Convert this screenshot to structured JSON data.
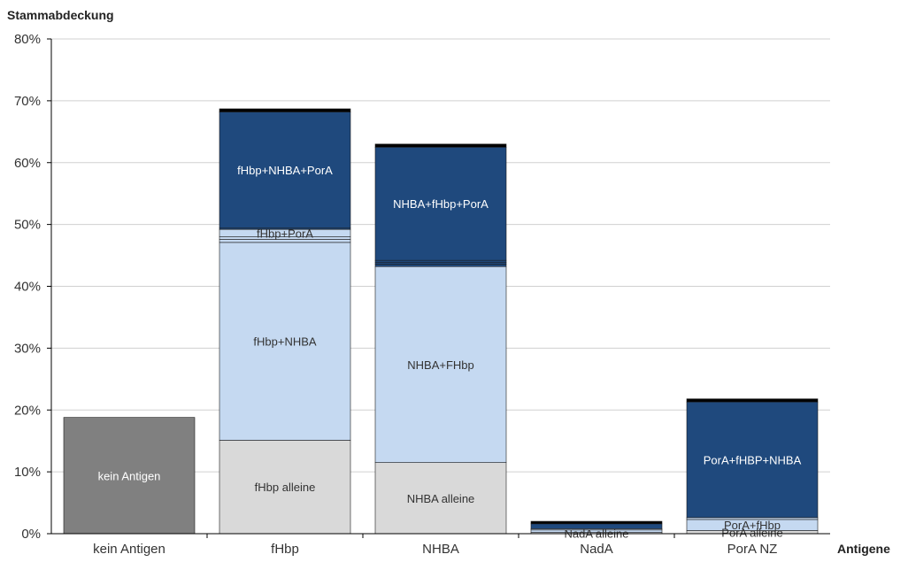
{
  "chart_data": {
    "type": "bar",
    "stacked": true,
    "ylabel": "Stammabdeckung",
    "xlabel": "Antigene",
    "ylim": [
      0,
      0.8
    ],
    "yticks": [
      "0%",
      "10%",
      "20%",
      "30%",
      "40%",
      "50%",
      "60%",
      "70%",
      "80%"
    ],
    "grid": true,
    "categories": [
      "kein Antigen",
      "fHbp",
      "NHBA",
      "NadA",
      "PorA NZ"
    ],
    "colors": {
      "gray_dark": "#808080",
      "gray_light": "#d9d9d9",
      "blue_light": "#c5d9f1",
      "blue_dark": "#1f497d",
      "black": "#000000",
      "axis": "#000000",
      "grid": "#d0d0d0",
      "text": "#333333"
    },
    "bars": [
      {
        "category": "kein Antigen",
        "segments": [
          {
            "value": 0.188,
            "color": "gray_dark",
            "label": "kein Antigen"
          }
        ]
      },
      {
        "category": "fHbp",
        "segments": [
          {
            "value": 0.151,
            "color": "gray_light",
            "label": "fHbp alleine"
          },
          {
            "value": 0.32,
            "color": "blue_light",
            "label": "fHbp+NHBA"
          },
          {
            "value": 0.005,
            "color": "blue_light",
            "label": ""
          },
          {
            "value": 0.004,
            "color": "blue_light",
            "label": ""
          },
          {
            "value": 0.012,
            "color": "blue_light",
            "label": "fHbp+PorA"
          },
          {
            "value": 0.002,
            "color": "blue_dark",
            "label": ""
          },
          {
            "value": 0.188,
            "color": "blue_dark",
            "label": "fHbp+NHBA+PorA"
          },
          {
            "value": 0.005,
            "color": "black",
            "label": ""
          }
        ]
      },
      {
        "category": "NHBA",
        "segments": [
          {
            "value": 0.115,
            "color": "gray_light",
            "label": "NHBA alleine"
          },
          {
            "value": 0.317,
            "color": "blue_light",
            "label": "NHBA+FHbp"
          },
          {
            "value": 0.004,
            "color": "blue_dark",
            "label": ""
          },
          {
            "value": 0.003,
            "color": "blue_dark",
            "label": ""
          },
          {
            "value": 0.003,
            "color": "blue_dark",
            "label": ""
          },
          {
            "value": 0.183,
            "color": "blue_dark",
            "label": "NHBA+fHbp+PorA"
          },
          {
            "value": 0.005,
            "color": "black",
            "label": ""
          }
        ]
      },
      {
        "category": "NadA",
        "segments": [
          {
            "value": 0.002,
            "color": "gray_light",
            "label": "NadA alleine"
          },
          {
            "value": 0.004,
            "color": "blue_light",
            "label": ""
          },
          {
            "value": 0.002,
            "color": "blue_light",
            "label": ""
          },
          {
            "value": 0.008,
            "color": "blue_dark",
            "label": ""
          },
          {
            "value": 0.004,
            "color": "black",
            "label": ""
          }
        ]
      },
      {
        "category": "PorA NZ",
        "segments": [
          {
            "value": 0.005,
            "color": "gray_light",
            "label": "PorA alleine"
          },
          {
            "value": 0.018,
            "color": "blue_light",
            "label": "PorA+fHbp"
          },
          {
            "value": 0.003,
            "color": "blue_light",
            "label": ""
          },
          {
            "value": 0.187,
            "color": "blue_dark",
            "label": "PorA+fHBP+NHBA"
          },
          {
            "value": 0.005,
            "color": "black",
            "label": ""
          }
        ]
      }
    ]
  }
}
